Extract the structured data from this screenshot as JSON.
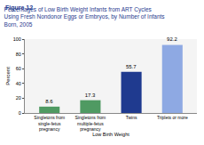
{
  "chart_data": {
    "type": "bar",
    "title": "Percentages of Low Birth Weight Infants from ART Cycles Using Fresh Nondonor Eggs or Embryos, by Number of Infants Born, 2005",
    "annotations": [
      "Figure 12"
    ],
    "x_label": "Low Birth Weight",
    "y_label": "Percent",
    "categories": [
      "Singletons from single-fetus pregnancy",
      "Singletons from multiple-fetus pregnancy",
      "Twins",
      "Triplets or more"
    ],
    "values": [
      8.6,
      17.3,
      55.7,
      92.2
    ],
    "colors": [
      "#4f9a62",
      "#4f9a62",
      "#1f3a8f",
      "#8ea9e3"
    ],
    "ylim": [
      0,
      100
    ],
    "yticks": [
      0,
      20,
      40,
      60,
      80,
      100
    ],
    "grid": false,
    "data_labels": true
  }
}
